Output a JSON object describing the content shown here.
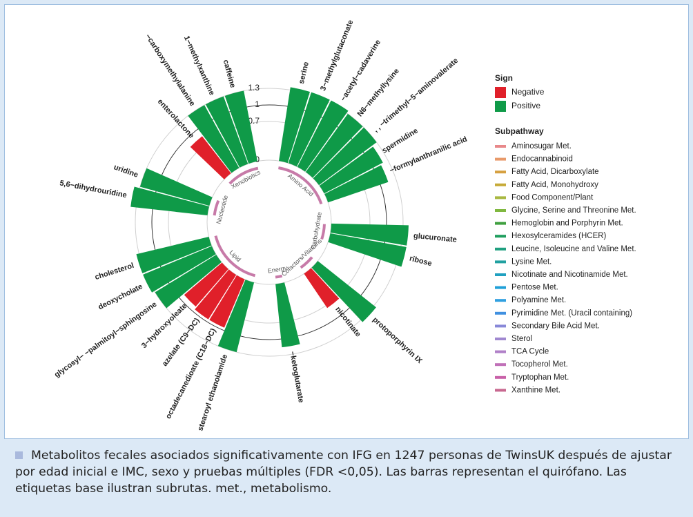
{
  "chart_data": {
    "type": "radial_bar",
    "ylim": [
      0,
      1.5
    ],
    "yticks": [
      0,
      0.7,
      1,
      1.3
    ],
    "sign": {
      "title": "Sign",
      "items": [
        {
          "name": "Negative",
          "color": "#e0202a"
        },
        {
          "name": "Positive",
          "color": "#0f9a48"
        }
      ]
    },
    "groups": [
      {
        "label": "Amino Acid",
        "categories": [
          "serine",
          "3−methylglutaconate",
          "−acetyl−cadaverine",
          "N6−methyllysine",
          ", , −trimethyl−5−aminovalerate",
          "spermidine",
          "−formylanthranilic acid"
        ],
        "values": [
          1.35,
          1.35,
          1.35,
          1.3,
          1.3,
          1.2,
          1.15
        ],
        "signs": [
          "Positive",
          "Positive",
          "Positive",
          "Positive",
          "Positive",
          "Positive",
          "Positive"
        ]
      },
      {
        "label": "Carbohydrate",
        "categories": [
          "glucuronate",
          "ribose"
        ],
        "values": [
          1.4,
          1.4
        ],
        "signs": [
          "Positive",
          "Positive"
        ]
      },
      {
        "label": "Cofactors/Vitamins",
        "categories": [
          "protoporphyrin IX",
          "nicotinate"
        ],
        "values": [
          1.35,
          0.75
        ],
        "signs": [
          "Positive",
          "Negative"
        ]
      },
      {
        "label": "Energy",
        "categories": [
          "−ketoglutarate"
        ],
        "values": [
          1.15
        ],
        "signs": [
          "Positive"
        ]
      },
      {
        "label": "Lipid",
        "categories": [
          "stearoyl ethanolamide",
          "octadecanedioate (C18−DC)",
          "azelate (C9−DC)",
          "3−hydroxyoleate",
          "glycosyl− −palmitoyl−sphingosine",
          "deoxycholate",
          "cholesterol"
        ],
        "values": [
          1.3,
          0.95,
          0.95,
          0.9,
          1.3,
          1.35,
          1.35
        ],
        "signs": [
          "Positive",
          "Negative",
          "Negative",
          "Negative",
          "Positive",
          "Positive",
          "Positive"
        ]
      },
      {
        "label": "Nucleotide",
        "categories": [
          "5,6−dihydrouridine",
          "uridine"
        ],
        "values": [
          1.4,
          1.3
        ],
        "signs": [
          "Positive",
          "Positive"
        ]
      },
      {
        "label": "Xenobiotics",
        "categories": [
          "enterolactone",
          "−carboxymethylalanine",
          "1−methylxanthine",
          "caffeine"
        ],
        "values": [
          0.85,
          1.3,
          1.3,
          1.3
        ],
        "signs": [
          "Negative",
          "Positive",
          "Positive",
          "Positive"
        ]
      }
    ],
    "subpathway": {
      "title": "Subpathway",
      "items": [
        {
          "name": "Aminosugar Met.",
          "color": "#e8888a"
        },
        {
          "name": "Endocannabinoid",
          "color": "#e89a6a"
        },
        {
          "name": "Fatty Acid, Dicarboxylate",
          "color": "#d6a040"
        },
        {
          "name": "Fatty Acid, Monohydroxy",
          "color": "#c6aa38"
        },
        {
          "name": "Food Component/Plant",
          "color": "#a8b840"
        },
        {
          "name": "Glycine, Serine and Threonine Met.",
          "color": "#80b840"
        },
        {
          "name": "Hemoglobin and Porphyrin Met.",
          "color": "#40a040"
        },
        {
          "name": "Hexosylceramides (HCER)",
          "color": "#1f9e5e"
        },
        {
          "name": "Leucine, Isoleucine and Valine Met.",
          "color": "#20a080"
        },
        {
          "name": "Lysine Met.",
          "color": "#20a0a0"
        },
        {
          "name": "Nicotinate and Nicotinamide Met.",
          "color": "#20a0c0"
        },
        {
          "name": "Pentose Met.",
          "color": "#20a0d8"
        },
        {
          "name": "Polyamine Met.",
          "color": "#30a0e0"
        },
        {
          "name": "Pyrimidine Met. (Uracil containing)",
          "color": "#4090e0"
        },
        {
          "name": "Secondary Bile Acid Met.",
          "color": "#8888d8"
        },
        {
          "name": "Sterol",
          "color": "#a088d0"
        },
        {
          "name": "TCA Cycle",
          "color": "#b080c8"
        },
        {
          "name": "Tocopherol Met.",
          "color": "#c070b8"
        },
        {
          "name": "Tryptophan Met.",
          "color": "#c860a8"
        },
        {
          "name": "Xanthine Met.",
          "color": "#c86890"
        }
      ]
    }
  },
  "caption": "Metabolitos fecales asociados significativamente con IFG en 1247 personas de TwinsUK después de ajustar por edad inicial e IMC, sexo y pruebas múltiples (FDR <0,05). Las barras representan el quirófano. Las etiquetas base ilustran subrutas. met., metabolismo."
}
